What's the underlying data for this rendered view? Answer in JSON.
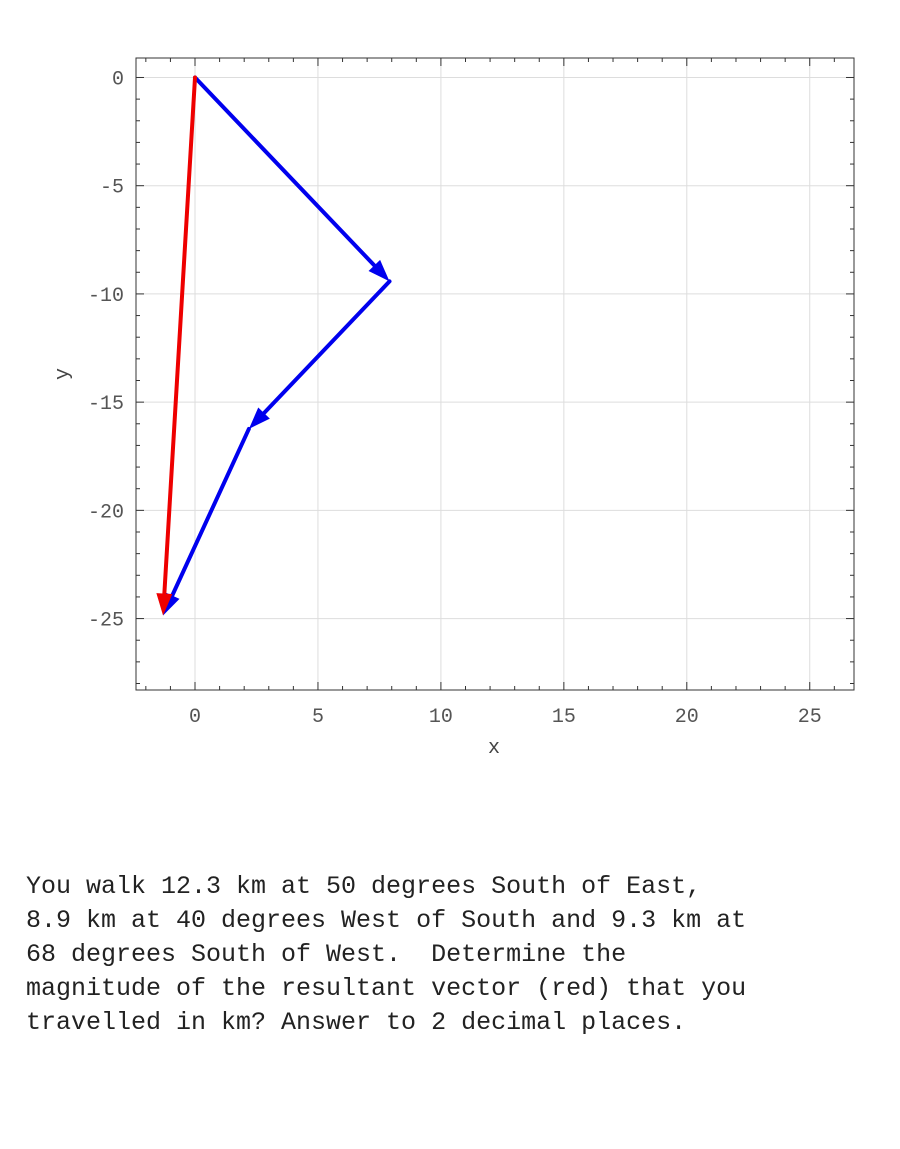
{
  "chart_data": {
    "type": "vector",
    "xlabel": "x",
    "ylabel": "y",
    "xlim": [
      -2.4,
      26.8
    ],
    "ylim": [
      -28.3,
      0.9
    ],
    "xticks": [
      0,
      5,
      10,
      15,
      20,
      25
    ],
    "yticks": [
      0,
      -5,
      -10,
      -15,
      -20,
      -25
    ],
    "grid": true,
    "vectors": [
      {
        "from": [
          0,
          0
        ],
        "to": [
          7.91,
          -9.42
        ],
        "color": "#0000ee"
      },
      {
        "from": [
          7.91,
          -9.42
        ],
        "to": [
          2.19,
          -16.24
        ],
        "color": "#0000ee"
      },
      {
        "from": [
          2.19,
          -16.24
        ],
        "to": [
          -1.3,
          -24.86
        ],
        "color": "#0000ee"
      },
      {
        "from": [
          0,
          0
        ],
        "to": [
          -1.3,
          -24.86
        ],
        "color": "#ee0000"
      }
    ]
  },
  "question": {
    "lines": [
      "You walk 12.3 km at 50 degrees South of East,",
      "8.9 km at 40 degrees West of South and 9.3 km at",
      "68 degrees South of West.  Determine the",
      "magnitude of the resultant vector (red) that you",
      "travelled in km? Answer to 2 decimal places."
    ]
  }
}
